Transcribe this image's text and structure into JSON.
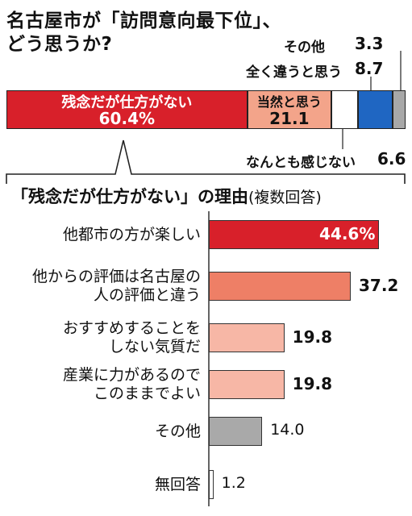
{
  "header": {
    "title_line1": "名古屋市が「訪問意向最下位」、",
    "title_line2": "どう思うか?"
  },
  "chart_data": [
    {
      "type": "bar",
      "orientation": "stacked-horizontal",
      "unit": "%",
      "series": [
        {
          "name": "残念だが仕方がない",
          "value": 60.4,
          "value_label": "60.4%",
          "color": "#d8202a"
        },
        {
          "name": "当然と思う",
          "value": 21.1,
          "value_label": "21.1",
          "color": "#f3a48a"
        },
        {
          "name": "なんとも感じない",
          "value": 6.6,
          "value_label": "6.6",
          "color": "#ffffff"
        },
        {
          "name": "全く違うと思う",
          "value": 8.7,
          "value_label": "8.7",
          "color": "#1f66c2"
        },
        {
          "name": "その他",
          "value": 3.3,
          "value_label": "3.3",
          "color": "#a8a8a8"
        }
      ]
    },
    {
      "type": "bar",
      "orientation": "horizontal",
      "title": "「残念だが仕方がない」の理由",
      "subtitle": "(複数回答)",
      "unit": "%",
      "xlim": [
        0,
        60
      ],
      "categories": [
        "他都市の方が楽しい",
        "他からの評価は名古屋の\n人の評価と違う",
        "おすすめすることを\nしない気質だ",
        "産業に力があるので\nこのままでよい",
        "その他",
        "無回答"
      ],
      "values": [
        44.6,
        37.2,
        19.8,
        19.8,
        14.0,
        1.2
      ],
      "value_labels": [
        "44.6%",
        "37.2",
        "19.8",
        "19.8",
        "14.0",
        "1.2"
      ],
      "colors": [
        "#d8202a",
        "#ee7f66",
        "#f7b7a6",
        "#f7b7a6",
        "#a9a9a9",
        "#ffffff"
      ]
    }
  ]
}
